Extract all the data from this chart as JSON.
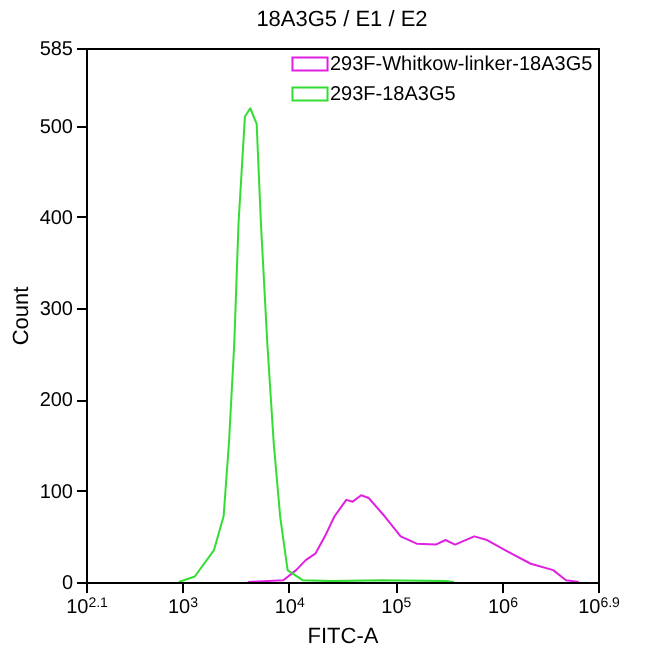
{
  "chart_data": {
    "type": "line",
    "title": "18A3G5 / E1 / E2",
    "xlabel": "FITC-A",
    "ylabel": "Count",
    "log": "x",
    "legend": "top right",
    "marker": "none",
    "line_style": "solid",
    "xlim": [
      125.9,
      7943282
    ],
    "xticks": [
      {
        "value": 125.9,
        "label": "10$^{2.1}$"
      },
      {
        "value": 1000,
        "label": "10$^{3}$"
      },
      {
        "value": 10000,
        "label": "10$^{4}$"
      },
      {
        "value": 100000,
        "label": "10$^{5}$"
      },
      {
        "value": 1000000,
        "label": "10$^{6}$"
      },
      {
        "value": 7943282,
        "label": "10$^{6.9}$"
      }
    ],
    "ylim": [
      0,
      585
    ],
    "yticks": [
      0,
      100,
      200,
      300,
      400,
      500,
      585
    ],
    "series": [
      {
        "name": "293F-Whitkow-linker-18A3G5",
        "color": "#e020e0",
        "x": [
          4169,
          8913,
          11749,
          14454,
          17783,
          21878,
          26915,
          34674,
          39811,
          47863,
          56234,
          79433,
          112202,
          158489,
          239883,
          295121,
          363078,
          549541,
          724436,
          1230269,
          1862087,
          3019952,
          3981072,
          5248075
        ],
        "values": [
          0,
          2,
          13,
          24,
          31,
          50,
          72,
          90,
          88,
          95,
          92,
          72,
          50,
          42,
          41,
          46,
          41,
          50,
          46,
          31,
          20,
          13,
          2,
          0
        ]
      },
      {
        "name": "293F-18A3G5",
        "color": "#33dd33",
        "x": [
          933,
          1318,
          1995,
          2455,
          2754,
          3090,
          3388,
          3890,
          4365,
          5012,
          5495,
          6310,
          7244,
          8318,
          9772,
          13490,
          25119,
          75858,
          295121,
          354813
        ],
        "values": [
          0,
          6,
          35,
          72,
          152,
          261,
          393,
          510,
          519,
          502,
          393,
          261,
          152,
          72,
          13,
          2,
          1,
          2,
          1,
          0
        ]
      }
    ]
  }
}
